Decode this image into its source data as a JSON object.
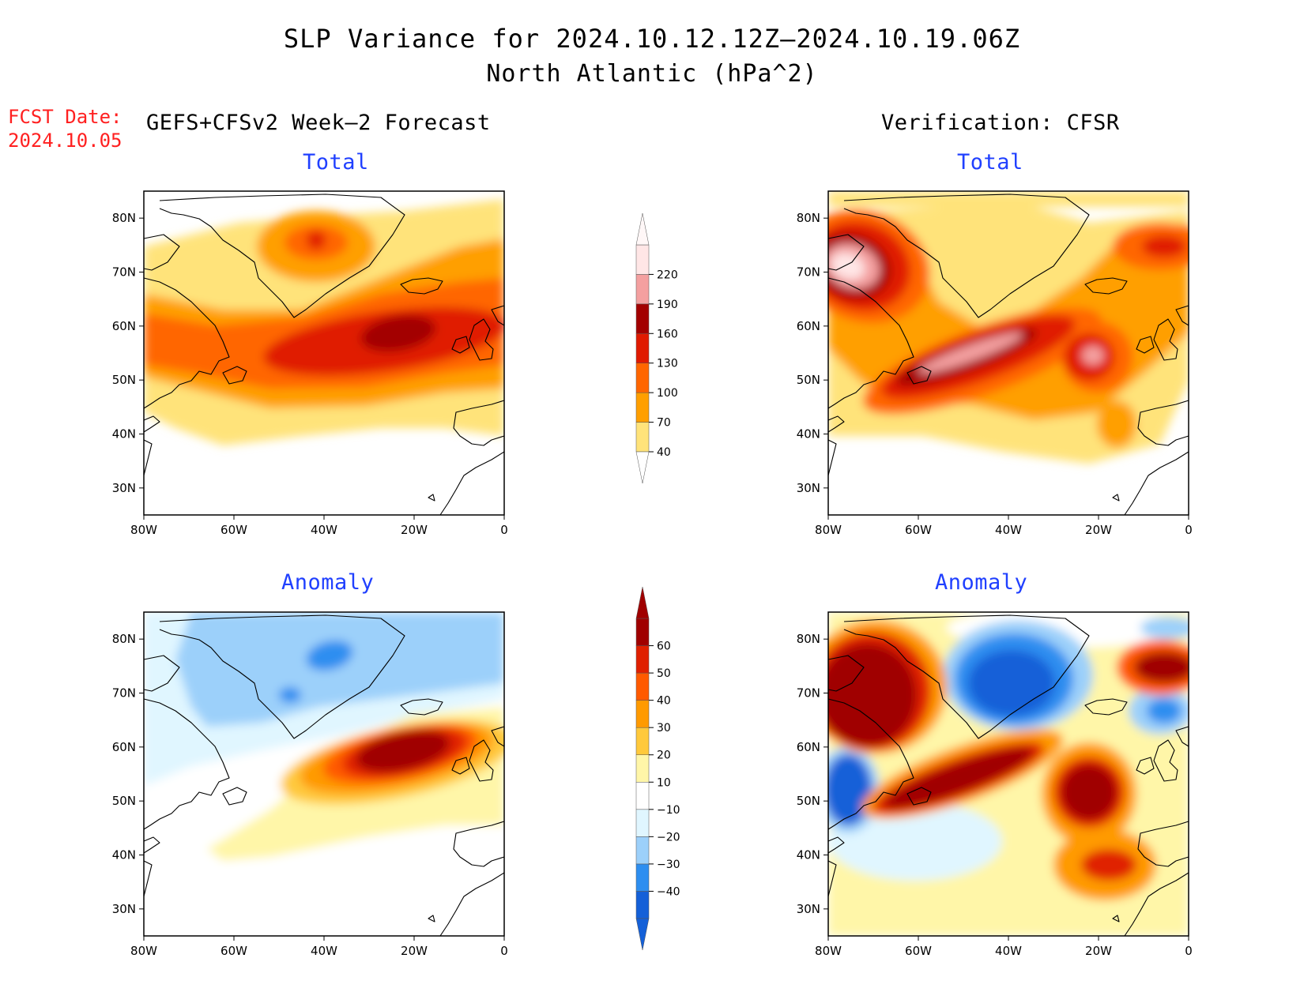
{
  "header": {
    "title_line1": "SLP Variance for 2024.10.12.12Z–2024.10.19.06Z",
    "title_line2": "North Atlantic (hPa^2)",
    "fcst_label": "FCST Date:",
    "fcst_date": "2024.10.05",
    "left_column_title": "GEFS+CFSv2 Week–2 Forecast",
    "right_column_title": "Verification: CFSR"
  },
  "panels": [
    {
      "id": "forecast-total",
      "title": "Total"
    },
    {
      "id": "verification-total",
      "title": "Total"
    },
    {
      "id": "forecast-anomaly",
      "title": "Anomaly"
    },
    {
      "id": "verification-anomaly",
      "title": "Anomaly"
    }
  ],
  "axes": {
    "lon_ticks": [
      "80W",
      "60W",
      "40W",
      "20W",
      "0"
    ],
    "lat_ticks": [
      "80N",
      "70N",
      "60N",
      "50N",
      "40N",
      "30N"
    ]
  },
  "colorbars": {
    "total": {
      "labels": [
        "40",
        "70",
        "100",
        "130",
        "160",
        "190",
        "220"
      ],
      "colors": [
        "#ffe37a",
        "#ff9f00",
        "#ff6600",
        "#e01a00",
        "#a30000",
        "#f4a0a0",
        "#ffe6e6"
      ]
    },
    "anomaly": {
      "labels": [
        "−40",
        "−30",
        "−20",
        "−10",
        "10",
        "20",
        "30",
        "40",
        "50",
        "60"
      ],
      "colors": [
        "#1460d8",
        "#2d8ef0",
        "#9cd0fa",
        "#e0f6ff",
        "#ffffff",
        "#fff6a8",
        "#ffc93c",
        "#ff9a00",
        "#ff5a00",
        "#e02000",
        "#a00000"
      ]
    }
  }
}
